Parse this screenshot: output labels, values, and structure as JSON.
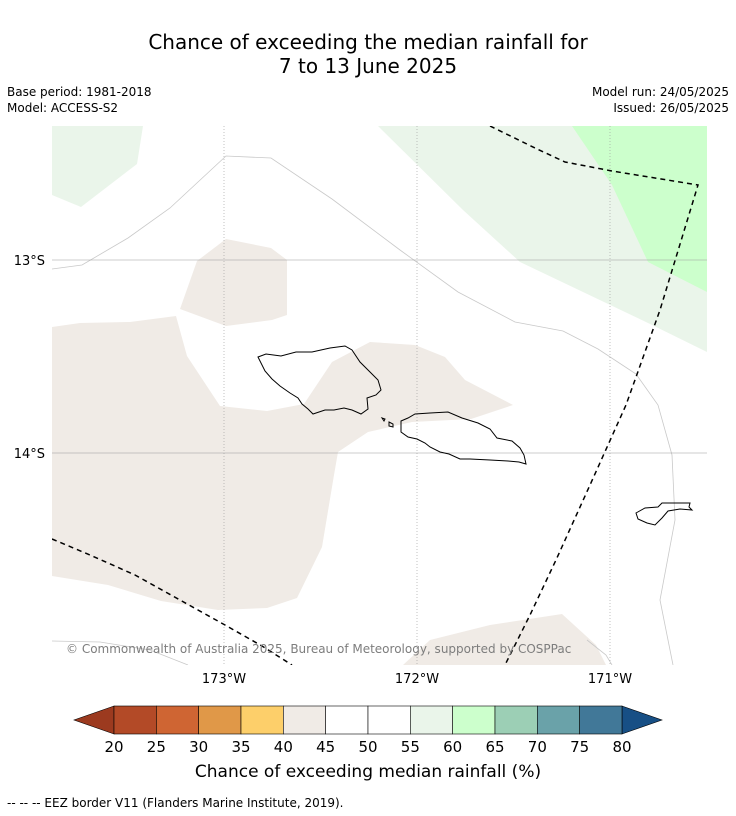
{
  "title": {
    "line1": "Chance of exceeding the median rainfall for",
    "line2": "7 to 13 June 2025"
  },
  "meta": {
    "base_period": "Base period: 1981-2018",
    "model": "Model: ACCESS-S2",
    "model_run": "Model run: 24/05/2025",
    "issued": "Issued: 26/05/2025"
  },
  "map": {
    "lat_labels": [
      "13°S",
      "14°S"
    ],
    "lon_labels": [
      "173°W",
      "172°W",
      "171°W"
    ],
    "copyright": "© Commonwealth of Australia 2025, Bureau of Meteorology, supported by COSPPac",
    "land_outline_color": "#000000",
    "eez_border": "dashed black line"
  },
  "colorbar": {
    "title": "Chance of exceeding median rainfall (%)",
    "ticks": [
      "20",
      "25",
      "30",
      "35",
      "40",
      "45",
      "50",
      "55",
      "60",
      "65",
      "70",
      "75",
      "80"
    ],
    "colors": [
      "#b34a27",
      "#cf6533",
      "#e09848",
      "#fdcf6a",
      "#f0ebe6",
      "#ffffff",
      "#ffffff",
      "#eaf5ea",
      "#ccffcc",
      "#9ccfb5",
      "#6aa2a9",
      "#417898"
    ],
    "under_color": "#9c3a1f",
    "over_color": "#174f85"
  },
  "footnote": "--  --  -- EEZ border V11 (Flanders Marine Institute, 2019)."
}
